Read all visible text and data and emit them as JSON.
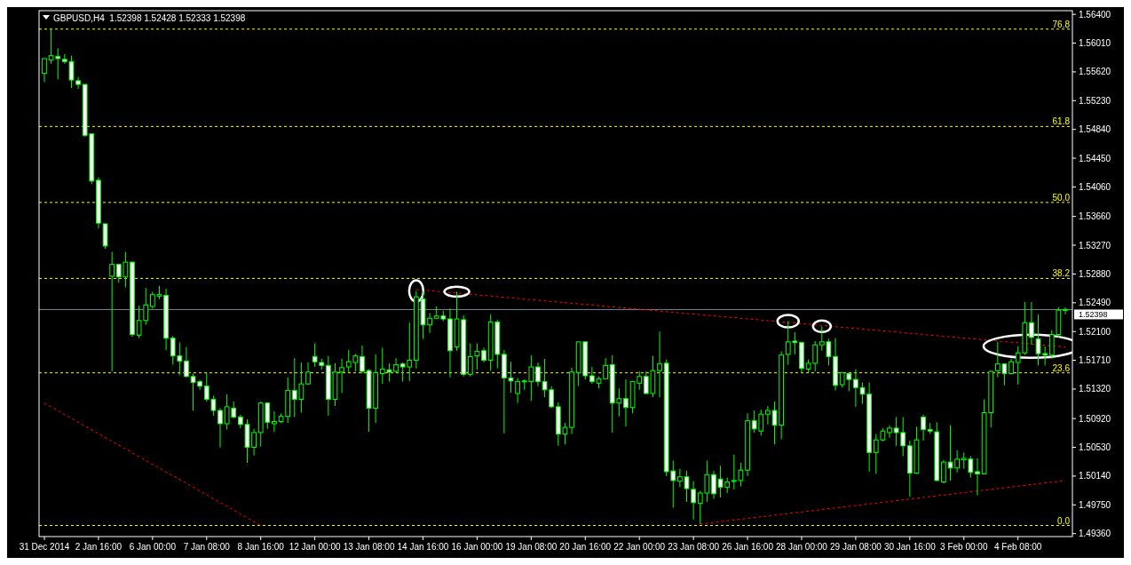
{
  "chart_data": {
    "type": "candlestick",
    "title": "GBPUSD,H4  1.52398 1.52428 1.52333 1.52398",
    "color": "#00ff00",
    "categories": [
      "31 Dec 2014",
      null,
      null,
      null,
      null,
      null,
      null,
      null,
      "2 Jan 16:00",
      null,
      null,
      null,
      null,
      null,
      null,
      null,
      "6 Jan 00:00",
      null,
      null,
      null,
      null,
      null,
      null,
      null,
      "7 Jan 08:00",
      null,
      null,
      null,
      null,
      null,
      null,
      null,
      "8 Jan 16:00",
      null,
      null,
      null,
      null,
      null,
      null,
      null,
      "12 Jan 00:00",
      null,
      null,
      null,
      null,
      null,
      null,
      null,
      "13 Jan 08:00",
      null,
      null,
      null,
      null,
      null,
      null,
      null,
      "14 Jan 16:00",
      null,
      null,
      null,
      null,
      null,
      null,
      null,
      "16 Jan 00:00",
      null,
      null,
      null,
      null,
      null,
      null,
      null,
      "19 Jan 08:00",
      null,
      null,
      null,
      null,
      null,
      null,
      null,
      "20 Jan 16:00",
      null,
      null,
      null,
      null,
      null,
      null,
      null,
      "22 Jan 00:00",
      null,
      null,
      null,
      null,
      null,
      null,
      null,
      "23 Jan 08:00",
      null,
      null,
      null,
      null,
      null,
      null,
      null,
      "26 Jan 16:00",
      null,
      null,
      null,
      null,
      null,
      null,
      null,
      "28 Jan 00:00",
      null,
      null,
      null,
      null,
      null,
      null,
      null,
      "29 Jan 08:00",
      null,
      null,
      null,
      null,
      null,
      null,
      null,
      "30 Jan 16:00",
      null,
      null,
      null,
      null,
      null,
      null,
      null,
      "3 Feb 00:00",
      null,
      null,
      null,
      null,
      null,
      null,
      null,
      "4 Feb 08:00",
      null,
      null,
      null,
      null,
      null,
      null,
      null
    ],
    "ohlc": [
      [
        1.556,
        1.558,
        1.5548,
        1.558
      ],
      [
        1.5578,
        1.562,
        1.5573,
        1.5584
      ],
      [
        1.5583,
        1.5594,
        1.5552,
        1.558
      ],
      [
        1.5579,
        1.5586,
        1.5573,
        1.5576
      ],
      [
        1.5576,
        1.5584,
        1.554,
        1.5551
      ],
      [
        1.555,
        1.5555,
        1.5539,
        1.5545
      ],
      [
        1.5545,
        1.5545,
        1.5474,
        1.5476
      ],
      [
        1.5478,
        1.5478,
        1.541,
        1.5414
      ],
      [
        1.5415,
        1.5419,
        1.535,
        1.5357
      ],
      [
        1.5356,
        1.5356,
        1.5322,
        1.5326
      ],
      [
        1.5285,
        1.5318,
        1.5156,
        1.5301
      ],
      [
        1.5301,
        1.5301,
        1.5276,
        1.5284
      ],
      [
        1.5284,
        1.5318,
        1.527,
        1.5304
      ],
      [
        1.5304,
        1.5305,
        1.5203,
        1.5206
      ],
      [
        1.5205,
        1.5245,
        1.5201,
        1.5225
      ],
      [
        1.5225,
        1.5269,
        1.5219,
        1.5246
      ],
      [
        1.5244,
        1.5264,
        1.5241,
        1.526
      ],
      [
        1.5258,
        1.5272,
        1.5254,
        1.526
      ],
      [
        1.5259,
        1.5268,
        1.5185,
        1.5201
      ],
      [
        1.5201,
        1.5204,
        1.5165,
        1.5177
      ],
      [
        1.5177,
        1.5195,
        1.5151,
        1.517
      ],
      [
        1.517,
        1.5189,
        1.5148,
        1.5149
      ],
      [
        1.5149,
        1.5153,
        1.5103,
        1.5141
      ],
      [
        1.5142,
        1.5144,
        1.5131,
        1.5136
      ],
      [
        1.5136,
        1.5154,
        1.5115,
        1.5118
      ],
      [
        1.5118,
        1.5123,
        1.5096,
        1.5103
      ],
      [
        1.5103,
        1.5106,
        1.5053,
        1.5085
      ],
      [
        1.5085,
        1.5125,
        1.5077,
        1.5108
      ],
      [
        1.5106,
        1.5115,
        1.5092,
        1.5094
      ],
      [
        1.5094,
        1.5097,
        1.5079,
        1.5084
      ],
      [
        1.5084,
        1.5091,
        1.5032,
        1.5053
      ],
      [
        1.5053,
        1.5078,
        1.5042,
        1.5073
      ],
      [
        1.5073,
        1.5115,
        1.5054,
        1.5113
      ],
      [
        1.5113,
        1.5114,
        1.5078,
        1.5087
      ],
      [
        1.5085,
        1.5102,
        1.5074,
        1.5088
      ],
      [
        1.5088,
        1.5099,
        1.5086,
        1.5095
      ],
      [
        1.5095,
        1.5148,
        1.5086,
        1.513
      ],
      [
        1.513,
        1.5174,
        1.5094,
        1.5118
      ],
      [
        1.5118,
        1.5168,
        1.51,
        1.5139
      ],
      [
        1.5139,
        1.5168,
        1.5138,
        1.5155
      ],
      [
        1.5176,
        1.5194,
        1.5162,
        1.5169
      ],
      [
        1.5168,
        1.5173,
        1.5158,
        1.5164
      ],
      [
        1.5164,
        1.5177,
        1.5096,
        1.5118
      ],
      [
        1.5118,
        1.5167,
        1.5109,
        1.5155
      ],
      [
        1.5155,
        1.5173,
        1.5127,
        1.5161
      ],
      [
        1.5162,
        1.5185,
        1.5155,
        1.5169
      ],
      [
        1.5168,
        1.518,
        1.5156,
        1.5177
      ],
      [
        1.5176,
        1.5191,
        1.5153,
        1.5156
      ],
      [
        1.5157,
        1.5159,
        1.5074,
        1.5106
      ],
      [
        1.5106,
        1.5179,
        1.5086,
        1.5154
      ],
      [
        1.5153,
        1.5188,
        1.5139,
        1.5159
      ],
      [
        1.5158,
        1.5167,
        1.5142,
        1.5155
      ],
      [
        1.5156,
        1.5174,
        1.5154,
        1.5165
      ],
      [
        1.5166,
        1.5168,
        1.5142,
        1.5162
      ],
      [
        1.5162,
        1.5222,
        1.5143,
        1.5171
      ],
      [
        1.5171,
        1.5265,
        1.516,
        1.5257
      ],
      [
        1.5254,
        1.5265,
        1.52,
        1.5219
      ],
      [
        1.5219,
        1.5235,
        1.5208,
        1.5228
      ],
      [
        1.5228,
        1.5244,
        1.5227,
        1.5231
      ],
      [
        1.5231,
        1.5238,
        1.5224,
        1.5227
      ],
      [
        1.5227,
        1.5241,
        1.5148,
        1.5184
      ],
      [
        1.5189,
        1.5264,
        1.5184,
        1.5227
      ],
      [
        1.5226,
        1.5232,
        1.5149,
        1.5152
      ],
      [
        1.5152,
        1.5194,
        1.5149,
        1.5176
      ],
      [
        1.5177,
        1.5194,
        1.5158,
        1.5183
      ],
      [
        1.5184,
        1.5188,
        1.5168,
        1.5171
      ],
      [
        1.5171,
        1.5233,
        1.5157,
        1.5223
      ],
      [
        1.5223,
        1.5226,
        1.516,
        1.5179
      ],
      [
        1.5179,
        1.5185,
        1.5072,
        1.5147
      ],
      [
        1.5147,
        1.5169,
        1.5127,
        1.5143
      ],
      [
        1.5126,
        1.5147,
        1.5113,
        1.5142
      ],
      [
        1.5143,
        1.5145,
        1.5131,
        1.5142
      ],
      [
        1.5142,
        1.5178,
        1.5116,
        1.5162
      ],
      [
        1.5162,
        1.5168,
        1.5136,
        1.5142
      ],
      [
        1.5142,
        1.5173,
        1.5121,
        1.5131
      ],
      [
        1.5131,
        1.5136,
        1.5106,
        1.5108
      ],
      [
        1.5108,
        1.5114,
        1.5055,
        1.5071
      ],
      [
        1.5071,
        1.5086,
        1.5057,
        1.508
      ],
      [
        1.508,
        1.5161,
        1.5071,
        1.5155
      ],
      [
        1.5154,
        1.5196,
        1.5136,
        1.5196
      ],
      [
        1.5196,
        1.5196,
        1.5145,
        1.515
      ],
      [
        1.515,
        1.5162,
        1.5139,
        1.5142
      ],
      [
        1.514,
        1.5149,
        1.5133,
        1.5146
      ],
      [
        1.5146,
        1.5174,
        1.5145,
        1.5164
      ],
      [
        1.5165,
        1.5178,
        1.5073,
        1.5113
      ],
      [
        1.5113,
        1.5133,
        1.5095,
        1.5119
      ],
      [
        1.5119,
        1.5145,
        1.5081,
        1.5107
      ],
      [
        1.5107,
        1.5143,
        1.5099,
        1.5142
      ],
      [
        1.514,
        1.5156,
        1.5131,
        1.5149
      ],
      [
        1.5149,
        1.5156,
        1.5125,
        1.5126
      ],
      [
        1.5126,
        1.5177,
        1.5121,
        1.5157
      ],
      [
        1.5157,
        1.521,
        1.5121,
        1.5166
      ],
      [
        1.5167,
        1.5172,
        1.5014,
        1.502
      ],
      [
        1.5021,
        1.5035,
        1.4971,
        1.5008
      ],
      [
        1.5007,
        1.5024,
        1.4999,
        1.5013
      ],
      [
        1.5013,
        1.5021,
        1.4979,
        1.4997
      ],
      [
        1.4996,
        1.5007,
        1.4955,
        1.4978
      ],
      [
        1.4977,
        1.4994,
        1.4949,
        1.4991
      ],
      [
        1.4991,
        1.5035,
        1.4979,
        1.5016
      ],
      [
        1.5016,
        1.5021,
        1.4983,
        1.499
      ],
      [
        1.501,
        1.5028,
        1.4985,
        1.4999
      ],
      [
        1.4999,
        1.5012,
        1.4991,
        1.5006
      ],
      [
        1.5007,
        1.5043,
        1.4996,
        1.5008
      ],
      [
        1.5008,
        1.5032,
        1.5,
        1.5022
      ],
      [
        1.5022,
        1.5099,
        1.5014,
        1.5089
      ],
      [
        1.5089,
        1.5103,
        1.5073,
        1.5078
      ],
      [
        1.5075,
        1.5104,
        1.5069,
        1.5098
      ],
      [
        1.5098,
        1.5109,
        1.5084,
        1.5103
      ],
      [
        1.5103,
        1.5115,
        1.5057,
        1.5083
      ],
      [
        1.5083,
        1.5183,
        1.5064,
        1.5178
      ],
      [
        1.5179,
        1.5224,
        1.5165,
        1.5196
      ],
      [
        1.5197,
        1.5209,
        1.5179,
        1.5195
      ],
      [
        1.5195,
        1.5196,
        1.5154,
        1.516
      ],
      [
        1.5159,
        1.5172,
        1.5154,
        1.5167
      ],
      [
        1.5167,
        1.5197,
        1.5156,
        1.5192
      ],
      [
        1.5192,
        1.5217,
        1.5184,
        1.5196
      ],
      [
        1.5196,
        1.52,
        1.5164,
        1.5176
      ],
      [
        1.5176,
        1.5201,
        1.513,
        1.5137
      ],
      [
        1.5138,
        1.5155,
        1.5134,
        1.5154
      ],
      [
        1.5153,
        1.5155,
        1.5129,
        1.5145
      ],
      [
        1.5145,
        1.5159,
        1.5108,
        1.5134
      ],
      [
        1.5134,
        1.5141,
        1.5112,
        1.5125
      ],
      [
        1.5125,
        1.5141,
        1.502,
        1.5046
      ],
      [
        1.5046,
        1.5071,
        1.5017,
        1.5063
      ],
      [
        1.5063,
        1.5079,
        1.5061,
        1.5075
      ],
      [
        1.5073,
        1.5083,
        1.5066,
        1.5079
      ],
      [
        1.5079,
        1.5094,
        1.5055,
        1.5073
      ],
      [
        1.5073,
        1.5094,
        1.5041,
        1.5055
      ],
      [
        1.5055,
        1.5062,
        1.4986,
        1.5018
      ],
      [
        1.5018,
        1.5081,
        1.5017,
        1.5063
      ],
      [
        1.5094,
        1.5097,
        1.5062,
        1.5077
      ],
      [
        1.5077,
        1.5086,
        1.5071,
        1.5075
      ],
      [
        1.5074,
        1.5087,
        1.5007,
        1.5008
      ],
      [
        1.5006,
        1.5036,
        1.5004,
        1.5033
      ],
      [
        1.5033,
        1.5083,
        1.5008,
        1.5025
      ],
      [
        1.5025,
        1.5049,
        1.5019,
        1.5037
      ],
      [
        1.5036,
        1.5046,
        1.5024,
        1.5038
      ],
      [
        1.5037,
        1.5041,
        1.5012,
        1.5019
      ],
      [
        1.502,
        1.5038,
        1.4988,
        1.5017
      ],
      [
        1.5017,
        1.5118,
        1.5017,
        1.51
      ],
      [
        1.51,
        1.5157,
        1.508,
        1.5156
      ],
      [
        1.5157,
        1.5196,
        1.5148,
        1.5166
      ],
      [
        1.5166,
        1.5166,
        1.5137,
        1.5153
      ],
      [
        1.5153,
        1.5173,
        1.5152,
        1.5169
      ],
      [
        1.5168,
        1.519,
        1.5138,
        1.5181
      ],
      [
        1.5181,
        1.525,
        1.5178,
        1.5222
      ],
      [
        1.5222,
        1.525,
        1.5192,
        1.5202
      ],
      [
        1.52,
        1.5233,
        1.5164,
        1.518
      ],
      [
        1.518,
        1.519,
        1.5164,
        1.5178
      ],
      [
        1.5178,
        1.5212,
        1.5173,
        1.5206
      ],
      [
        1.5206,
        1.5243,
        1.5202,
        1.5239
      ],
      [
        1.52398,
        1.52428,
        1.52333,
        1.52398
      ]
    ],
    "series": [
      {
        "type": "line",
        "color": "#ff0000",
        "line_style": "dashed",
        "values": [
          1.5113,
          null,
          null,
          null,
          null,
          null,
          null,
          null,
          null,
          null,
          null,
          null,
          null,
          null,
          null,
          null,
          null,
          null,
          null,
          null,
          null,
          null,
          null,
          null,
          null,
          null,
          null,
          null,
          null,
          null,
          null,
          null,
          1.4947,
          null,
          null,
          null,
          null,
          null,
          null,
          null,
          null,
          null,
          null,
          null,
          null,
          null,
          null,
          null,
          null,
          null,
          null,
          null,
          null,
          null,
          null,
          null,
          null,
          null,
          null,
          null,
          null,
          null,
          null,
          null,
          null,
          null,
          null,
          null,
          null,
          null,
          null,
          null,
          null,
          null,
          null,
          null,
          null,
          null,
          null,
          null,
          null,
          null,
          null,
          null,
          null,
          null,
          null,
          null,
          null,
          null,
          null,
          null,
          null,
          null,
          null,
          null,
          null,
          null,
          null,
          null,
          null,
          null,
          null,
          null,
          null,
          null,
          null,
          null,
          null,
          null,
          null,
          null,
          null,
          null,
          null,
          null,
          null,
          null,
          null,
          null,
          null,
          null,
          null,
          null,
          null,
          null,
          null,
          null,
          null,
          null,
          null,
          null,
          null,
          null,
          null,
          null,
          null,
          null,
          null,
          null,
          null,
          null,
          null,
          null,
          null,
          null,
          null,
          null,
          null,
          null,
          null,
          null
        ]
      },
      {
        "type": "line",
        "color": "#ff0000",
        "line_style": "dashed",
        "values": [
          null,
          null,
          null,
          null,
          null,
          null,
          null,
          null,
          null,
          null,
          null,
          null,
          null,
          null,
          null,
          null,
          null,
          null,
          null,
          null,
          null,
          null,
          null,
          null,
          null,
          null,
          null,
          null,
          null,
          null,
          null,
          null,
          null,
          null,
          null,
          null,
          null,
          null,
          null,
          null,
          null,
          null,
          null,
          null,
          null,
          null,
          null,
          null,
          null,
          null,
          null,
          null,
          null,
          null,
          null,
          1.5267,
          null,
          null,
          null,
          null,
          null,
          null,
          null,
          null,
          null,
          null,
          null,
          null,
          null,
          null,
          null,
          null,
          null,
          null,
          null,
          null,
          null,
          null,
          null,
          null,
          null,
          null,
          null,
          null,
          null,
          null,
          null,
          null,
          null,
          null,
          null,
          null,
          null,
          null,
          null,
          null,
          null,
          null,
          null,
          null,
          null,
          null,
          null,
          null,
          null,
          null,
          null,
          null,
          null,
          null,
          null,
          null,
          null,
          null,
          null,
          null,
          null,
          null,
          null,
          null,
          null,
          null,
          null,
          null,
          null,
          null,
          null,
          null,
          null,
          null,
          null,
          null,
          null,
          null,
          null,
          null,
          null,
          null,
          null,
          null,
          null,
          null,
          null,
          null,
          null,
          null,
          null,
          null,
          null,
          null,
          null,
          1.5189
        ]
      },
      {
        "type": "line",
        "color": "#ff0000",
        "line_style": "dashed",
        "values": [
          null,
          null,
          null,
          null,
          null,
          null,
          null,
          null,
          null,
          null,
          null,
          null,
          null,
          null,
          null,
          null,
          null,
          null,
          null,
          null,
          null,
          null,
          null,
          null,
          null,
          null,
          null,
          null,
          null,
          null,
          null,
          null,
          null,
          null,
          null,
          null,
          null,
          null,
          null,
          null,
          null,
          null,
          null,
          null,
          null,
          null,
          null,
          null,
          null,
          null,
          null,
          null,
          null,
          null,
          null,
          null,
          null,
          null,
          null,
          null,
          null,
          null,
          null,
          null,
          null,
          null,
          null,
          null,
          null,
          null,
          null,
          null,
          null,
          null,
          null,
          null,
          null,
          null,
          null,
          null,
          null,
          null,
          null,
          null,
          null,
          null,
          null,
          null,
          null,
          null,
          null,
          null,
          null,
          null,
          null,
          null,
          null,
          1.4949,
          null,
          null,
          null,
          null,
          null,
          null,
          null,
          null,
          null,
          null,
          null,
          null,
          null,
          null,
          null,
          null,
          null,
          null,
          null,
          null,
          null,
          null,
          null,
          null,
          null,
          null,
          null,
          null,
          null,
          null,
          null,
          null,
          null,
          null,
          null,
          null,
          null,
          null,
          null,
          null,
          null,
          null,
          null,
          null,
          null,
          null,
          null,
          null,
          null,
          null,
          null,
          null,
          null,
          1.5008
        ]
      }
    ],
    "ref_lines": [
      {
        "axis": "y",
        "value": 1.562,
        "color": "#ffff00",
        "line_style": "dashed"
      },
      {
        "axis": "y",
        "value": 1.5488,
        "color": "#ffff00",
        "line_style": "dashed"
      },
      {
        "axis": "y",
        "value": 1.5385,
        "color": "#ffff00",
        "line_style": "dashed"
      },
      {
        "axis": "y",
        "value": 1.5282,
        "color": "#ffff00",
        "line_style": "dashed"
      },
      {
        "axis": "y",
        "value": 1.5154,
        "color": "#ffff00",
        "line_style": "dashed"
      },
      {
        "axis": "y",
        "value": 1.4947,
        "color": "#ffff00",
        "line_style": "dashed"
      },
      {
        "axis": "y",
        "value": 1.52398,
        "label": "1.52398",
        "color": "#778899",
        "line_style": "solid"
      }
    ],
    "annotations": [
      {
        "text": "76.8",
        "y": 1.562
      },
      {
        "text": "61.8",
        "y": 1.5488
      },
      {
        "text": "50.0",
        "y": 1.5385
      },
      {
        "text": "38.2",
        "y": 1.5282
      },
      {
        "text": "23.6",
        "y": 1.5154
      },
      {
        "text": "0.0",
        "y": 1.4947
      }
    ],
    "ylim": [
      1.4932,
      1.5645
    ],
    "yticks": [
      {
        "value": 1.564,
        "label": "1.56400"
      },
      {
        "value": 1.5601,
        "label": "1.56010"
      },
      {
        "value": 1.5562,
        "label": "1.55620"
      },
      {
        "value": 1.5523,
        "label": "1.55230"
      },
      {
        "value": 1.5484,
        "label": "1.54840"
      },
      {
        "value": 1.5445,
        "label": "1.54450"
      },
      {
        "value": 1.5406,
        "label": "1.54060"
      },
      {
        "value": 1.5366,
        "label": "1.53660"
      },
      {
        "value": 1.5327,
        "label": "1.53270"
      },
      {
        "value": 1.5288,
        "label": "1.52880"
      },
      {
        "value": 1.5249,
        "label": "1.52490"
      },
      {
        "value": 1.521,
        "label": "1.52100"
      },
      {
        "value": 1.5171,
        "label": "1.51710"
      },
      {
        "value": 1.5132,
        "label": "1.51320"
      },
      {
        "value": 1.5092,
        "label": "1.50920"
      },
      {
        "value": 1.5053,
        "label": "1.50530"
      },
      {
        "value": 1.5014,
        "label": "1.50140"
      },
      {
        "value": 1.4975,
        "label": "1.49750"
      },
      {
        "value": 1.4936,
        "label": "1.49360"
      }
    ]
  }
}
